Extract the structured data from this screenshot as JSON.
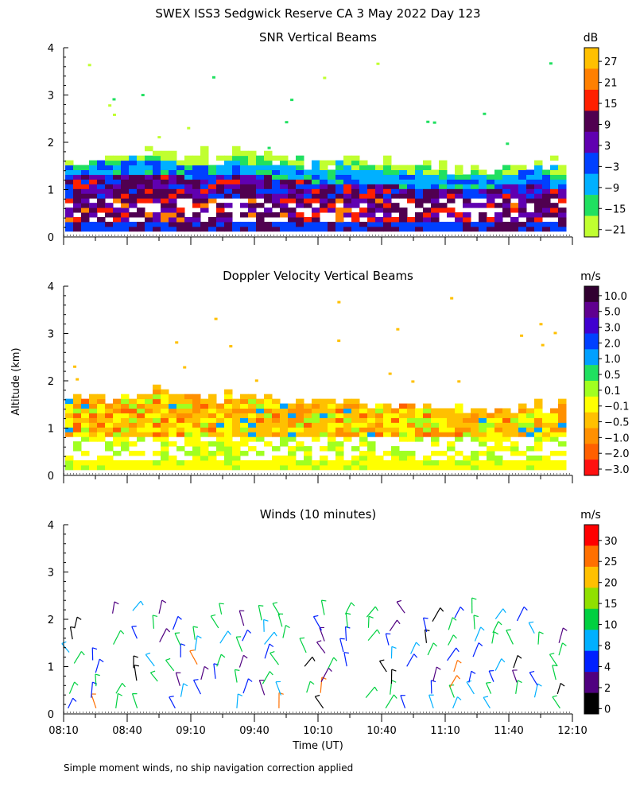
{
  "title": "SWEX ISS3 Sedgwick Reserve CA   3 May 2022 Day 123",
  "footnote": "Simple moment winds, no ship navigation correction applied",
  "shared_ylabel": "Altitude (km)",
  "shared_xlabel": "Time (UT)",
  "chart_data": [
    {
      "type": "heatmap",
      "title": "SNR Vertical Beams",
      "xlabel": "Time (UT)",
      "ylabel": "Altitude (km)",
      "x_range": [
        "08:10",
        "12:10"
      ],
      "ylim": [
        0,
        4
      ],
      "y_ticks": [
        "0",
        "1",
        "2",
        "3",
        "4"
      ],
      "x_ticks": [],
      "colorbar": {
        "units": "dB",
        "labels": [
          "27",
          "21",
          "15",
          "9",
          "3",
          "−3",
          "−9",
          "−15",
          "−21"
        ],
        "colors": [
          "#ffc000",
          "#ff8000",
          "#ff2000",
          "#500050",
          "#6000b0",
          "#0040ff",
          "#00b0ff",
          "#20e060",
          "#c0ff30"
        ]
      },
      "layers": [
        {
          "name": "low_echo_top_km",
          "values": [
            1.5,
            1.7,
            1.8,
            1.7,
            1.8,
            1.7,
            1.6,
            1.7,
            1.6,
            1.5,
            1.5,
            1.6,
            1.5
          ]
        },
        {
          "name": "strong_echo_top_km",
          "values": [
            1.2,
            1.3,
            1.3,
            1.2,
            1.3,
            1.2,
            1.1,
            1.1,
            1.0,
            1.0,
            1.0,
            1.1,
            0.9
          ]
        }
      ]
    },
    {
      "type": "heatmap",
      "title": "Doppler Velocity Vertical Beams",
      "xlabel": "Time (UT)",
      "ylabel": "Altitude (km)",
      "x_range": [
        "08:10",
        "12:10"
      ],
      "ylim": [
        0,
        4
      ],
      "y_ticks": [
        "0",
        "1",
        "2",
        "3",
        "4"
      ],
      "x_ticks": [],
      "colorbar": {
        "units": "m/s",
        "labels": [
          "10.0",
          "5.0",
          "3.0",
          "2.0",
          "1.0",
          "0.5",
          "0.1",
          "−0.1",
          "−0.5",
          "−1.0",
          "−2.0",
          "−3.0"
        ],
        "colors": [
          "#300030",
          "#600090",
          "#4000d0",
          "#0040ff",
          "#00a0ff",
          "#20e060",
          "#a0ff20",
          "#ffff00",
          "#ffc000",
          "#ff9000",
          "#ff6000",
          "#ff1010"
        ]
      },
      "layers": [
        {
          "name": "echo_top_km",
          "values": [
            1.7,
            1.7,
            1.8,
            1.7,
            1.7,
            1.6,
            1.6,
            1.5,
            1.5,
            1.5,
            1.4,
            1.5,
            1.4
          ]
        }
      ]
    },
    {
      "type": "scatter",
      "title": "Winds (10 minutes)",
      "xlabel": "Time (UT)",
      "ylabel": "Altitude (km)",
      "x_range": [
        "08:10",
        "12:10"
      ],
      "ylim": [
        0,
        4
      ],
      "y_ticks": [
        "0",
        "1",
        "2",
        "3",
        "4"
      ],
      "x_ticks": [
        "08:10",
        "08:40",
        "09:10",
        "09:40",
        "10:10",
        "10:40",
        "11:10",
        "11:40",
        "12:10"
      ],
      "colorbar": {
        "units": "m/s",
        "labels": [
          "30",
          "25",
          "20",
          "15",
          "10",
          "8",
          "4",
          "2",
          "0"
        ],
        "colors": [
          "#ff0000",
          "#ff7000",
          "#ffc000",
          "#90e000",
          "#00d040",
          "#00b0ff",
          "#0020ff",
          "#500080",
          "#000000"
        ]
      },
      "wind_barbs": "10-minute wind barbs at 24 time steps from 08:10 to 12:10, heights 0.1–2.4 km, mostly 2–10 m/s"
    }
  ]
}
